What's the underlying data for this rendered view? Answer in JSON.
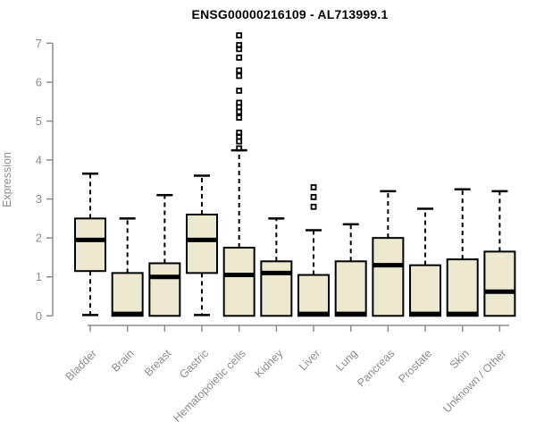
{
  "chart_data": {
    "type": "boxplot",
    "title": "ENSG00000216109 - AL713999.1",
    "ylabel": "Expression",
    "xlabel": "",
    "ylim": [
      0,
      7
    ],
    "yticks": [
      0,
      1,
      2,
      3,
      4,
      5,
      6,
      7
    ],
    "grid": "off",
    "legend": "none",
    "categories": [
      "Bladder",
      "Brain",
      "Breast",
      "Gastric",
      "Hematopoietic cells",
      "Kidney",
      "Liver",
      "Lung",
      "Pancreas",
      "Prostate",
      "Skin",
      "Unknown / Other"
    ],
    "boxes": [
      {
        "category": "Bladder",
        "whisker_low": 0.02,
        "q1": 1.15,
        "median": 1.95,
        "q3": 2.5,
        "whisker_high": 3.65,
        "outliers": []
      },
      {
        "category": "Brain",
        "whisker_low": 0,
        "q1": 0,
        "median": 0.05,
        "q3": 1.1,
        "whisker_high": 2.5,
        "outliers": []
      },
      {
        "category": "Breast",
        "whisker_low": 0,
        "q1": 0,
        "median": 1.0,
        "q3": 1.35,
        "whisker_high": 3.1,
        "outliers": []
      },
      {
        "category": "Gastric",
        "whisker_low": 0.02,
        "q1": 1.1,
        "median": 1.95,
        "q3": 2.6,
        "whisker_high": 3.6,
        "outliers": []
      },
      {
        "category": "Hematopoietic cells",
        "whisker_low": 0,
        "q1": 0,
        "median": 1.05,
        "q3": 1.75,
        "whisker_high": 4.25,
        "outliers": [
          4.3,
          4.48,
          4.6,
          4.7,
          5.09,
          5.24,
          5.36,
          5.47,
          5.78,
          6.16,
          6.3,
          6.63,
          6.85,
          6.95,
          7.2
        ]
      },
      {
        "category": "Kidney",
        "whisker_low": 0,
        "q1": 0,
        "median": 1.1,
        "q3": 1.4,
        "whisker_high": 2.5,
        "outliers": []
      },
      {
        "category": "Liver",
        "whisker_low": 0,
        "q1": 0,
        "median": 0.05,
        "q3": 1.05,
        "whisker_high": 2.2,
        "outliers": [
          2.8,
          3.05,
          3.3
        ]
      },
      {
        "category": "Lung",
        "whisker_low": 0,
        "q1": 0,
        "median": 0.05,
        "q3": 1.4,
        "whisker_high": 2.35,
        "outliers": []
      },
      {
        "category": "Pancreas",
        "whisker_low": 0,
        "q1": 0,
        "median": 1.3,
        "q3": 2.0,
        "whisker_high": 3.2,
        "outliers": []
      },
      {
        "category": "Prostate",
        "whisker_low": 0,
        "q1": 0,
        "median": 0.05,
        "q3": 1.3,
        "whisker_high": 2.75,
        "outliers": []
      },
      {
        "category": "Skin",
        "whisker_low": 0,
        "q1": 0,
        "median": 0.05,
        "q3": 1.45,
        "whisker_high": 3.25,
        "outliers": []
      },
      {
        "category": "Unknown / Other",
        "whisker_low": 0,
        "q1": 0,
        "median": 0.62,
        "q3": 1.65,
        "whisker_high": 3.2,
        "outliers": []
      }
    ],
    "colors": {
      "box_fill": "#EDE8D0",
      "box_border": "#000000",
      "median": "#000000",
      "whisker": "#000000",
      "axis": "#8c8c8c",
      "tick_label": "#8c8c8c",
      "title": "#000000",
      "background": "#ffffff"
    }
  }
}
